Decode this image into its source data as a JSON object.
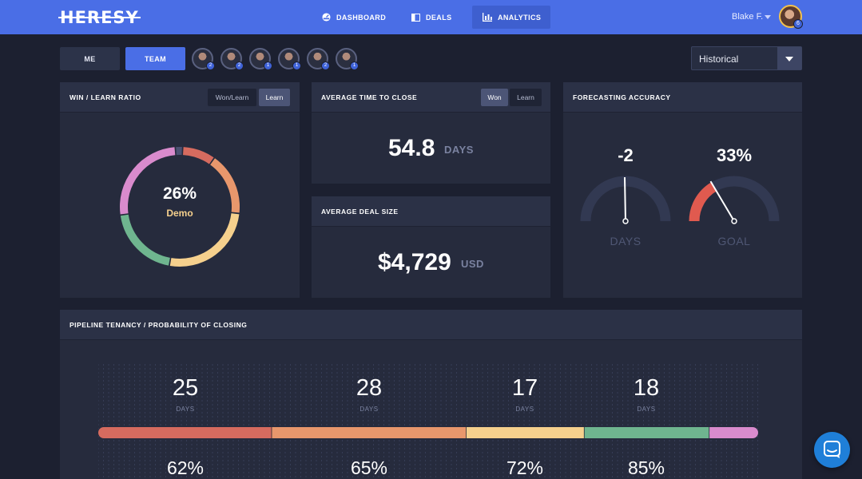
{
  "header": {
    "logo": "HERESY",
    "nav": [
      {
        "label": "DASHBOARD",
        "icon": "dashboard-gauge-icon"
      },
      {
        "label": "DEALS",
        "icon": "deals-book-icon"
      },
      {
        "label": "ANALYTICS",
        "icon": "analytics-bars-icon",
        "active": true
      }
    ],
    "user": {
      "name": "Blake F.",
      "badge": "6"
    }
  },
  "controls": {
    "me_label": "ME",
    "team_label": "TEAM",
    "team_members": [
      {
        "badge": "2"
      },
      {
        "badge": "2"
      },
      {
        "badge": "1"
      },
      {
        "badge": "1"
      },
      {
        "badge": "2"
      },
      {
        "badge": "1"
      }
    ],
    "period": {
      "selected": "Historical"
    }
  },
  "win_learn": {
    "title": "WIN / LEARN RATIO",
    "toggle": [
      "Won/Learn",
      "Learn"
    ],
    "active_toggle": "Learn",
    "center_value": "26%",
    "center_label": "Demo",
    "chart_data": {
      "type": "pie",
      "labels": [
        "Demo"
      ],
      "center_value_percent": 26,
      "slices": [
        {
          "color": "#d66b5f",
          "fraction": 0.09
        },
        {
          "color": "#e8976c",
          "fraction": 0.17
        },
        {
          "color": "#f5d08d",
          "fraction": 0.26
        },
        {
          "color": "#6fb58f",
          "fraction": 0.2
        },
        {
          "color": "#d98bcd",
          "fraction": 0.26
        },
        {
          "color": "#4a5172",
          "fraction": 0.02
        }
      ]
    }
  },
  "time_to_close": {
    "title": "AVERAGE TIME TO CLOSE",
    "toggle": [
      "Won",
      "Learn"
    ],
    "active_toggle": "Won",
    "value": "54.8",
    "unit": "DAYS"
  },
  "deal_size": {
    "title": "AVERAGE DEAL SIZE",
    "value": "$4,729",
    "unit": "USD"
  },
  "forecast": {
    "title": "FORECASTING ACCURACY",
    "gauges": [
      {
        "value": "-2",
        "label": "DAYS",
        "level": 0.0,
        "fill_color": null
      },
      {
        "value": "33%",
        "label": "GOAL",
        "level": 0.33,
        "fill_color": "#e05a4f"
      }
    ]
  },
  "pipeline": {
    "title": "PIPELINE TENANCY / PROBABILITY OF CLOSING",
    "stages": [
      {
        "days": "25",
        "unit": "DAYS",
        "probability": "62%",
        "color": "#d66b5f",
        "weight": 25
      },
      {
        "days": "28",
        "unit": "DAYS",
        "probability": "65%",
        "color": "#e8976c",
        "weight": 28
      },
      {
        "days": "17",
        "unit": "DAYS",
        "probability": "72%",
        "color": "#f5d08d",
        "weight": 17
      },
      {
        "days": "18",
        "unit": "DAYS",
        "probability": "85%",
        "color": "#6fb58f",
        "weight": 18
      },
      {
        "days": "",
        "unit": "",
        "probability": "",
        "color": "#d98bcd",
        "weight": 7
      }
    ]
  },
  "colors": {
    "accent": "#4a6ee6",
    "background": "#1c2030",
    "card": "#262b3d"
  }
}
